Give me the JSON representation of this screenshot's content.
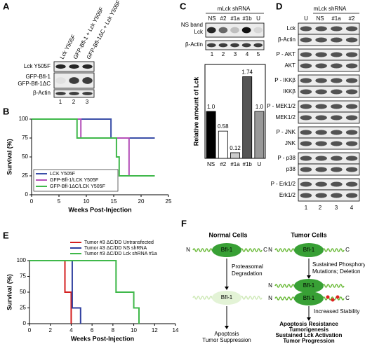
{
  "chart_data": [
    {
      "type": "line",
      "xlabel": "Weeks Post-Injection",
      "ylabel": "Survival (%)",
      "xlim": [
        0,
        25
      ],
      "ylim": [
        0,
        100
      ],
      "xticks": [
        0,
        5,
        10,
        15,
        20,
        25
      ],
      "yticks": [
        0,
        25,
        50,
        75,
        100
      ],
      "legend": "lower left",
      "series": [
        {
          "name": "LCK Y505F",
          "color": "#3b4fa8",
          "x": [
            0,
            14.5,
            14.5,
            22.5
          ],
          "values": [
            100,
            100,
            75,
            75
          ]
        },
        {
          "name": "GFP-Bfl-1/LCK Y505F",
          "color": "#b44fb8",
          "x": [
            0,
            9,
            9,
            17.8,
            17.8,
            22.5
          ],
          "values": [
            100,
            100,
            75,
            75,
            25,
            25
          ]
        },
        {
          "name": "GFP-Bfl-1ΔC/LCK Y505F",
          "color": "#3fb84a",
          "x": [
            0,
            8.3,
            8.3,
            15.5,
            15.5,
            16,
            16,
            22.5
          ],
          "values": [
            100,
            100,
            75,
            75,
            50,
            50,
            25,
            25
          ]
        }
      ]
    },
    {
      "type": "bar",
      "ylabel": "Relative amount of Lck",
      "categories": [
        "NS",
        "#2",
        "#1a",
        "#1b",
        "U"
      ],
      "values": [
        1.0,
        0.58,
        0.12,
        1.74,
        1.0
      ],
      "value_labels": [
        "1.0",
        "0.58",
        "0.12",
        "1.74",
        "1.0"
      ],
      "colors": [
        "#000000",
        "#ffffff",
        "#cccccc",
        "#555555",
        "#999999"
      ],
      "ylim": [
        0,
        2
      ]
    },
    {
      "type": "line",
      "xlabel": "Weeks Post-Injection",
      "ylabel": "Survival (%)",
      "xlim": [
        0,
        14
      ],
      "ylim": [
        0,
        100
      ],
      "xticks": [
        0,
        2,
        4,
        6,
        8,
        10,
        12,
        14
      ],
      "yticks": [
        0,
        25,
        50,
        75,
        100
      ],
      "legend": "upper right",
      "series": [
        {
          "name": "Tumor #3 ΔC/DD Untransfected",
          "color": "#d42020",
          "x": [
            0,
            3.4,
            3.4,
            4,
            4
          ],
          "values": [
            100,
            100,
            50,
            50,
            0
          ]
        },
        {
          "name": "Tumor #3 ΔC/DD NS shRNA",
          "color": "#2f3f9f",
          "x": [
            0,
            4.1,
            4.1,
            4.9,
            4.9
          ],
          "values": [
            100,
            100,
            25,
            25,
            0
          ]
        },
        {
          "name": "Tumor #3 ΔC/DD Lck shRNA #1a",
          "color": "#3fb84a",
          "x": [
            0,
            8.3,
            8.3,
            10,
            10,
            10.5,
            10.5
          ],
          "values": [
            100,
            100,
            50,
            50,
            25,
            25,
            0
          ]
        }
      ]
    }
  ],
  "panels": {
    "labels": [
      "A",
      "B",
      "C",
      "D",
      "E",
      "F"
    ],
    "A": {
      "columns": [
        "Lck Y505F",
        "GFP-Bfl-1 + Lck Y505F",
        "GFP-Bfl-1ΔC + Lck Y505F"
      ],
      "rows": [
        "Lck Y505F",
        "GFP-Bfl-1",
        "GFP-Bfl-1ΔC",
        "β-Actin"
      ],
      "lanes": [
        "1",
        "2",
        "3"
      ]
    },
    "C": {
      "header": "mLck shRNA",
      "columns": [
        "NS",
        "#2",
        "#1a",
        "#1b",
        "U"
      ],
      "rows": [
        "NS band",
        "Lck",
        "β-Actin"
      ],
      "lanes": [
        "1",
        "2",
        "3",
        "4",
        "5"
      ]
    },
    "D": {
      "header": "mLck shRNA",
      "columns": [
        "U",
        "NS",
        "#1a",
        "#2"
      ],
      "rows": [
        "Lck",
        "β-Actin",
        "P - AKT",
        "AKT",
        "P - IKKβ",
        "IKKβ",
        "P - MEK1/2",
        "MEK1/2",
        "P - JNK",
        "JNK",
        "P - p38",
        "p38",
        "P - Erk1/2",
        "Erk1/2"
      ],
      "lanes": [
        "1",
        "2",
        "3",
        "4"
      ]
    },
    "F": {
      "normal_title": "Normal Cells",
      "tumor_title": "Tumor Cells",
      "n": "N",
      "c": "C",
      "protein": "Bfl-1",
      "degradation": [
        "Proteasomal",
        "Degradation"
      ],
      "normal_outcome": [
        "Apoptosis",
        "Tumor Suppression"
      ],
      "tumor_changes": [
        "Sustained Phosphorylation;",
        "Mutations; Deletion"
      ],
      "stability": "Increased Stability",
      "tumor_outcome": [
        "Apoptosis Resistance",
        "Tumorigenesis",
        "Sustained Lck Activation",
        "Tumor Progression"
      ]
    }
  }
}
